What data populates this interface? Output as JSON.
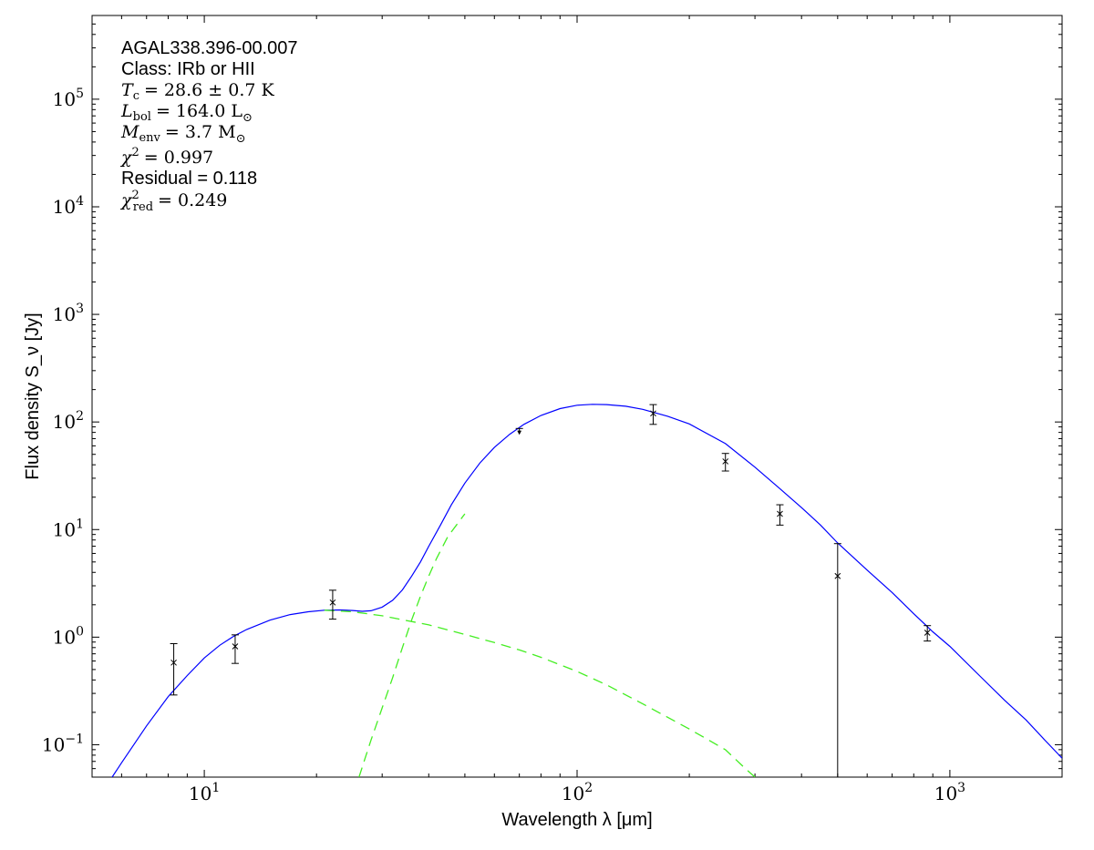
{
  "chart_data": {
    "type": "line",
    "source_name": "AGAL338.396-00.007",
    "xlabel": "Wavelength λ [μm]",
    "ylabel": "Flux density S_ν [Jy]",
    "x_scale": "log",
    "y_scale": "log",
    "xlim": [
      5,
      2000
    ],
    "ylim": [
      0.05,
      600000
    ],
    "x_ticks": [
      {
        "value": 10,
        "base": "10",
        "exp": "1"
      },
      {
        "value": 100,
        "base": "10",
        "exp": "2"
      },
      {
        "value": 1000,
        "base": "10",
        "exp": "3"
      }
    ],
    "y_ticks": [
      {
        "value": 0.1,
        "base": "10",
        "exp": "−1"
      },
      {
        "value": 1,
        "base": "10",
        "exp": "0"
      },
      {
        "value": 10,
        "base": "10",
        "exp": "1"
      },
      {
        "value": 100,
        "base": "10",
        "exp": "2"
      },
      {
        "value": 1000,
        "base": "10",
        "exp": "3"
      },
      {
        "value": 10000,
        "base": "10",
        "exp": "4"
      },
      {
        "value": 100000,
        "base": "10",
        "exp": "5"
      }
    ],
    "annotations": {
      "name": "AGAL338.396-00.007",
      "class_line": "Class: IRb or HII",
      "tc_line": "= 28.6 ± 0.7 K",
      "tc_sym": "T",
      "tc_sub": "c",
      "lbol_line": "= 164.0 L",
      "lbol_sym": "L",
      "lbol_sub": "bol",
      "menv_line": "= 3.7 M",
      "menv_sym": "M",
      "menv_sub": "env",
      "sun_sub": "⊙",
      "chi2_line": "χ",
      "chi2_sup": "2",
      "chi2_val": "= 0.997",
      "residual_line": "Residual = 0.118",
      "chi2red_line": "χ",
      "chi2red_sup": "2",
      "chi2red_sub": "red",
      "chi2red_val": "= 0.249"
    },
    "data_points": [
      {
        "x": 8.28,
        "y": 0.58,
        "ylo": 0.29,
        "yhi": 0.87
      },
      {
        "x": 12.1,
        "y": 0.82,
        "ylo": 0.57,
        "yhi": 1.05
      },
      {
        "x": 22.1,
        "y": 2.1,
        "ylo": 1.47,
        "yhi": 2.73
      },
      {
        "x": 160,
        "y": 120,
        "ylo": 95,
        "yhi": 145
      },
      {
        "x": 250,
        "y": 43,
        "ylo": 35,
        "yhi": 51
      },
      {
        "x": 350,
        "y": 14,
        "ylo": 11,
        "yhi": 17
      },
      {
        "x": 500,
        "y": 3.7,
        "ylo": 0.05,
        "yhi": 7.4
      },
      {
        "x": 870,
        "y": 1.1,
        "ylo": 0.92,
        "yhi": 1.28
      }
    ],
    "upper_limits": [
      {
        "x": 70,
        "y": 87,
        "ylo": 78
      }
    ],
    "series": [
      {
        "role": "total_fit",
        "color": "#0000ff",
        "style": "solid",
        "points": [
          [
            5.5,
            0.043
          ],
          [
            6,
            0.068
          ],
          [
            7,
            0.15
          ],
          [
            8,
            0.28
          ],
          [
            9,
            0.44
          ],
          [
            10,
            0.64
          ],
          [
            11,
            0.84
          ],
          [
            12,
            1.02
          ],
          [
            13,
            1.18
          ],
          [
            15,
            1.44
          ],
          [
            17,
            1.62
          ],
          [
            19,
            1.72
          ],
          [
            21,
            1.78
          ],
          [
            23,
            1.79
          ],
          [
            25,
            1.77
          ],
          [
            26.5,
            1.74
          ],
          [
            28,
            1.76
          ],
          [
            30,
            1.9
          ],
          [
            32,
            2.2
          ],
          [
            34,
            2.75
          ],
          [
            36,
            3.7
          ],
          [
            38,
            5.0
          ],
          [
            40,
            7.0
          ],
          [
            43,
            11
          ],
          [
            46,
            17
          ],
          [
            50,
            27
          ],
          [
            55,
            42
          ],
          [
            60,
            58
          ],
          [
            66,
            77
          ],
          [
            72,
            95
          ],
          [
            80,
            115
          ],
          [
            90,
            133
          ],
          [
            100,
            143
          ],
          [
            110,
            146
          ],
          [
            120,
            145
          ],
          [
            135,
            140
          ],
          [
            150,
            131
          ],
          [
            175,
            113
          ],
          [
            200,
            96
          ],
          [
            250,
            63
          ],
          [
            300,
            38
          ],
          [
            350,
            24
          ],
          [
            400,
            16
          ],
          [
            450,
            11
          ],
          [
            500,
            7.5
          ],
          [
            600,
            4.2
          ],
          [
            700,
            2.6
          ],
          [
            800,
            1.65
          ],
          [
            900,
            1.12
          ],
          [
            1000,
            0.82
          ],
          [
            1200,
            0.44
          ],
          [
            1400,
            0.26
          ],
          [
            1600,
            0.17
          ],
          [
            1800,
            0.11
          ],
          [
            2000,
            0.075
          ]
        ]
      },
      {
        "role": "warm_component",
        "color": "#44ee22",
        "style": "dashed",
        "points": [
          [
            21,
            1.78
          ],
          [
            25,
            1.72
          ],
          [
            30,
            1.58
          ],
          [
            40,
            1.3
          ],
          [
            50,
            1.06
          ],
          [
            60,
            0.89
          ],
          [
            70,
            0.76
          ],
          [
            80,
            0.65
          ],
          [
            100,
            0.48
          ],
          [
            120,
            0.36
          ],
          [
            150,
            0.24
          ],
          [
            200,
            0.14
          ],
          [
            250,
            0.09
          ],
          [
            280,
            0.062
          ],
          [
            300,
            0.05
          ]
        ]
      },
      {
        "role": "cold_component",
        "color": "#44ee22",
        "style": "dashed",
        "points": [
          [
            26,
            0.05
          ],
          [
            27,
            0.075
          ],
          [
            28,
            0.11
          ],
          [
            30,
            0.22
          ],
          [
            32,
            0.42
          ],
          [
            34,
            0.8
          ],
          [
            36,
            1.45
          ],
          [
            38,
            2.4
          ],
          [
            40,
            3.7
          ],
          [
            42,
            5.4
          ],
          [
            45,
            8.6
          ],
          [
            50,
            14
          ]
        ]
      }
    ]
  }
}
